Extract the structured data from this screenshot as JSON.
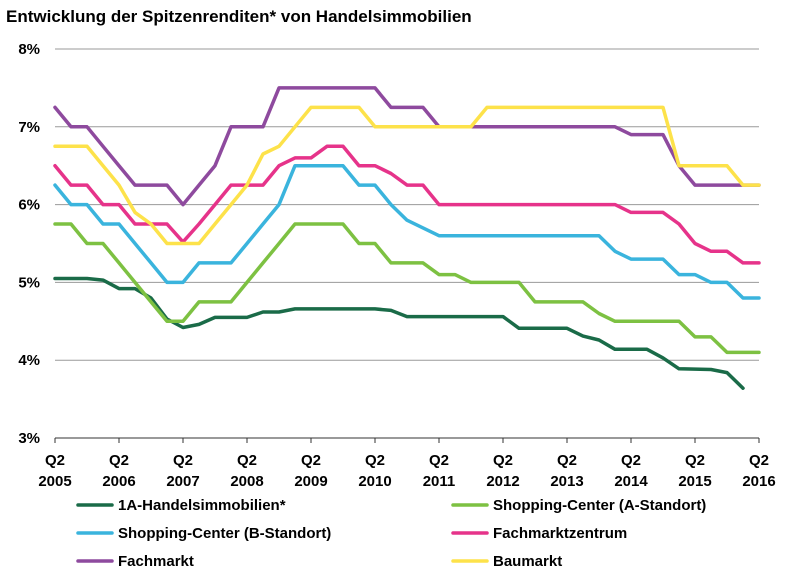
{
  "chart_data": {
    "type": "line",
    "title": "Entwicklung der Spitzenrenditen* von Handelsimmobilien",
    "ylim": [
      3,
      8
    ],
    "yticks": [
      3,
      4,
      5,
      6,
      7,
      8
    ],
    "ytick_labels": [
      "3%",
      "4%",
      "5%",
      "6%",
      "7%",
      "8%"
    ],
    "xlim": [
      2005.25,
      2016.25
    ],
    "x_tick_labels": [
      {
        "x": 2005.25,
        "line1": "Q2",
        "line2": "2005"
      },
      {
        "x": 2006.25,
        "line1": "Q2",
        "line2": "2006"
      },
      {
        "x": 2007.25,
        "line1": "Q2",
        "line2": "2007"
      },
      {
        "x": 2008.25,
        "line1": "Q2",
        "line2": "2008"
      },
      {
        "x": 2009.25,
        "line1": "Q2",
        "line2": "2009"
      },
      {
        "x": 2010.25,
        "line1": "Q2",
        "line2": "2010"
      },
      {
        "x": 2011.25,
        "line1": "Q2",
        "line2": "2011"
      },
      {
        "x": 2012.25,
        "line1": "Q2",
        "line2": "2012"
      },
      {
        "x": 2013.25,
        "line1": "Q2",
        "line2": "2013"
      },
      {
        "x": 2014.25,
        "line1": "Q2",
        "line2": "2014"
      },
      {
        "x": 2015.25,
        "line1": "Q2",
        "line2": "2015"
      },
      {
        "x": 2016.25,
        "line1": "Q2",
        "line2": "2016"
      }
    ],
    "grid": true,
    "legend_position": "bottom",
    "series": [
      {
        "name": "1A-Handelsimmobilien*",
        "color": "#1a6b48",
        "points": [
          [
            2005.25,
            5.05
          ],
          [
            2005.75,
            5.05
          ],
          [
            2006.0,
            5.03
          ],
          [
            2006.25,
            4.92
          ],
          [
            2006.5,
            4.92
          ],
          [
            2006.75,
            4.8
          ],
          [
            2007.0,
            4.53
          ],
          [
            2007.25,
            4.42
          ],
          [
            2007.5,
            4.46
          ],
          [
            2007.75,
            4.55
          ],
          [
            2008.25,
            4.55
          ],
          [
            2008.5,
            4.62
          ],
          [
            2008.75,
            4.62
          ],
          [
            2009.0,
            4.66
          ],
          [
            2010.25,
            4.66
          ],
          [
            2010.5,
            4.64
          ],
          [
            2010.75,
            4.56
          ],
          [
            2012.0,
            4.56
          ],
          [
            2012.25,
            4.56
          ],
          [
            2012.5,
            4.41
          ],
          [
            2013.25,
            4.41
          ],
          [
            2013.5,
            4.31
          ],
          [
            2013.75,
            4.26
          ],
          [
            2014.0,
            4.14
          ],
          [
            2014.5,
            4.14
          ],
          [
            2014.75,
            4.03
          ],
          [
            2015.0,
            3.89
          ],
          [
            2015.5,
            3.88
          ],
          [
            2015.75,
            3.84
          ],
          [
            2016.0,
            3.64
          ]
        ]
      },
      {
        "name": "Shopping-Center (A-Standort)",
        "color": "#7dc142",
        "points": [
          [
            2005.25,
            5.75
          ],
          [
            2005.5,
            5.75
          ],
          [
            2005.75,
            5.5
          ],
          [
            2006.0,
            5.5
          ],
          [
            2006.25,
            5.25
          ],
          [
            2006.5,
            5.0
          ],
          [
            2006.75,
            4.75
          ],
          [
            2007.0,
            4.5
          ],
          [
            2007.25,
            4.5
          ],
          [
            2007.5,
            4.75
          ],
          [
            2008.0,
            4.75
          ],
          [
            2008.25,
            5.0
          ],
          [
            2008.5,
            5.25
          ],
          [
            2008.75,
            5.5
          ],
          [
            2009.0,
            5.75
          ],
          [
            2009.75,
            5.75
          ],
          [
            2010.0,
            5.5
          ],
          [
            2010.25,
            5.5
          ],
          [
            2010.5,
            5.25
          ],
          [
            2011.0,
            5.25
          ],
          [
            2011.25,
            5.1
          ],
          [
            2011.5,
            5.1
          ],
          [
            2011.75,
            5.0
          ],
          [
            2012.5,
            5.0
          ],
          [
            2012.75,
            4.75
          ],
          [
            2013.5,
            4.75
          ],
          [
            2013.75,
            4.6
          ],
          [
            2014.0,
            4.5
          ],
          [
            2015.0,
            4.5
          ],
          [
            2015.25,
            4.3
          ],
          [
            2015.5,
            4.3
          ],
          [
            2015.75,
            4.1
          ],
          [
            2016.25,
            4.1
          ]
        ]
      },
      {
        "name": "Shopping-Center (B-Standort)",
        "color": "#3ab4dd",
        "points": [
          [
            2005.25,
            6.25
          ],
          [
            2005.5,
            6.0
          ],
          [
            2005.75,
            6.0
          ],
          [
            2006.0,
            5.75
          ],
          [
            2006.25,
            5.75
          ],
          [
            2006.5,
            5.5
          ],
          [
            2006.75,
            5.25
          ],
          [
            2007.0,
            5.0
          ],
          [
            2007.25,
            5.0
          ],
          [
            2007.5,
            5.25
          ],
          [
            2008.0,
            5.25
          ],
          [
            2008.25,
            5.5
          ],
          [
            2008.5,
            5.75
          ],
          [
            2008.75,
            6.0
          ],
          [
            2009.0,
            6.5
          ],
          [
            2009.75,
            6.5
          ],
          [
            2010.0,
            6.25
          ],
          [
            2010.25,
            6.25
          ],
          [
            2010.5,
            6.0
          ],
          [
            2010.75,
            5.8
          ],
          [
            2011.0,
            5.7
          ],
          [
            2011.25,
            5.6
          ],
          [
            2013.75,
            5.6
          ],
          [
            2014.0,
            5.4
          ],
          [
            2014.25,
            5.3
          ],
          [
            2014.75,
            5.3
          ],
          [
            2015.0,
            5.1
          ],
          [
            2015.25,
            5.1
          ],
          [
            2015.5,
            5.0
          ],
          [
            2015.75,
            5.0
          ],
          [
            2016.0,
            4.8
          ],
          [
            2016.25,
            4.8
          ]
        ]
      },
      {
        "name": "Fachmarktzentrum",
        "color": "#e6338a",
        "points": [
          [
            2005.25,
            6.5
          ],
          [
            2005.5,
            6.25
          ],
          [
            2005.75,
            6.25
          ],
          [
            2006.0,
            6.0
          ],
          [
            2006.25,
            6.0
          ],
          [
            2006.5,
            5.75
          ],
          [
            2006.75,
            5.75
          ],
          [
            2007.0,
            5.75
          ],
          [
            2007.25,
            5.52
          ],
          [
            2007.5,
            5.75
          ],
          [
            2007.75,
            6.0
          ],
          [
            2008.0,
            6.25
          ],
          [
            2008.5,
            6.25
          ],
          [
            2008.75,
            6.5
          ],
          [
            2009.0,
            6.6
          ],
          [
            2009.25,
            6.6
          ],
          [
            2009.5,
            6.75
          ],
          [
            2009.75,
            6.75
          ],
          [
            2010.0,
            6.5
          ],
          [
            2010.25,
            6.5
          ],
          [
            2010.5,
            6.4
          ],
          [
            2010.75,
            6.25
          ],
          [
            2011.0,
            6.25
          ],
          [
            2011.25,
            6.0
          ],
          [
            2014.0,
            6.0
          ],
          [
            2014.25,
            5.9
          ],
          [
            2014.75,
            5.9
          ],
          [
            2015.0,
            5.75
          ],
          [
            2015.25,
            5.5
          ],
          [
            2015.5,
            5.4
          ],
          [
            2015.75,
            5.4
          ],
          [
            2016.0,
            5.25
          ],
          [
            2016.25,
            5.25
          ]
        ]
      },
      {
        "name": "Fachmarkt",
        "color": "#8e4a9e",
        "points": [
          [
            2005.25,
            7.25
          ],
          [
            2005.5,
            7.0
          ],
          [
            2005.75,
            7.0
          ],
          [
            2006.0,
            6.75
          ],
          [
            2006.25,
            6.5
          ],
          [
            2006.5,
            6.25
          ],
          [
            2007.0,
            6.25
          ],
          [
            2007.25,
            6.0
          ],
          [
            2007.5,
            6.25
          ],
          [
            2007.75,
            6.5
          ],
          [
            2008.0,
            7.0
          ],
          [
            2008.5,
            7.0
          ],
          [
            2008.75,
            7.5
          ],
          [
            2010.25,
            7.5
          ],
          [
            2010.5,
            7.25
          ],
          [
            2011.0,
            7.25
          ],
          [
            2011.25,
            7.0
          ],
          [
            2014.0,
            7.0
          ],
          [
            2014.25,
            6.9
          ],
          [
            2014.75,
            6.9
          ],
          [
            2015.0,
            6.5
          ],
          [
            2015.25,
            6.25
          ],
          [
            2016.25,
            6.25
          ]
        ]
      },
      {
        "name": "Baumarkt",
        "color": "#fde24a",
        "points": [
          [
            2005.25,
            6.75
          ],
          [
            2005.75,
            6.75
          ],
          [
            2006.0,
            6.5
          ],
          [
            2006.25,
            6.25
          ],
          [
            2006.5,
            5.9
          ],
          [
            2006.75,
            5.75
          ],
          [
            2007.0,
            5.5
          ],
          [
            2007.5,
            5.5
          ],
          [
            2007.75,
            5.75
          ],
          [
            2008.0,
            6.0
          ],
          [
            2008.25,
            6.25
          ],
          [
            2008.5,
            6.65
          ],
          [
            2008.75,
            6.75
          ],
          [
            2009.0,
            7.0
          ],
          [
            2009.25,
            7.25
          ],
          [
            2010.0,
            7.25
          ],
          [
            2010.25,
            7.0
          ],
          [
            2011.75,
            7.0
          ],
          [
            2012.0,
            7.25
          ],
          [
            2014.75,
            7.25
          ],
          [
            2015.0,
            6.5
          ],
          [
            2015.75,
            6.5
          ],
          [
            2016.0,
            6.25
          ],
          [
            2016.25,
            6.25
          ]
        ]
      }
    ]
  }
}
